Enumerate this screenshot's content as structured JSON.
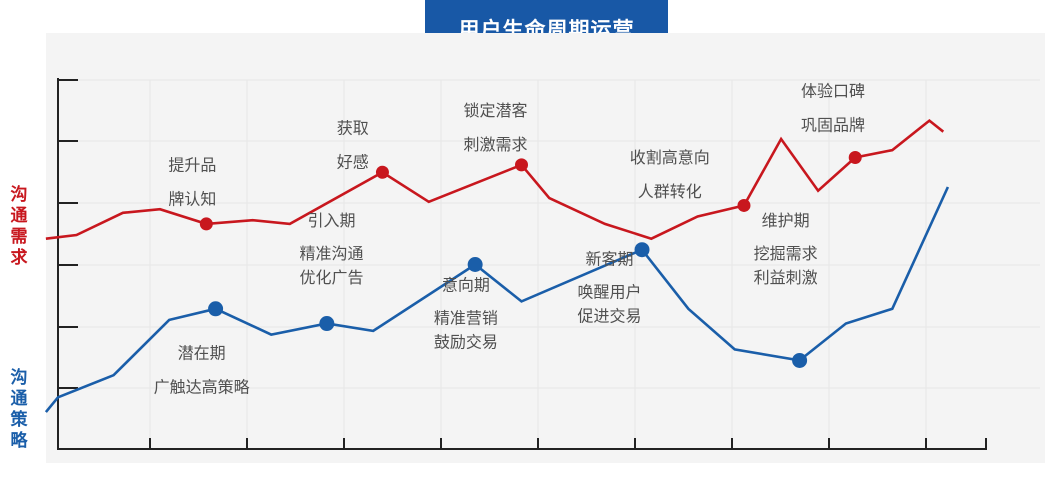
{
  "title": "用户生命周期运营",
  "left_labels": {
    "red": [
      "沟",
      "通",
      "需",
      "求"
    ],
    "blue": [
      "沟",
      "通",
      "策",
      "略"
    ]
  },
  "colors": {
    "red": "#c8171e",
    "blue": "#1a5ea9",
    "title_bg": "#1858a6",
    "axis": "#222222",
    "grid": "#e6e6e6"
  },
  "chart_data": {
    "type": "line",
    "xlim": [
      0,
      100
    ],
    "ylim": [
      0,
      100
    ],
    "grid": true,
    "series": [
      {
        "name": "沟通需求",
        "color": "#c8171e",
        "points": [
          [
            -1.3,
            57
          ],
          [
            2,
            58
          ],
          [
            7,
            64
          ],
          [
            11,
            65
          ],
          [
            16,
            61
          ],
          [
            21,
            62
          ],
          [
            25,
            61
          ],
          [
            35,
            75
          ],
          [
            40,
            67
          ],
          [
            50,
            77
          ],
          [
            53,
            68
          ],
          [
            59,
            61
          ],
          [
            64,
            57
          ],
          [
            69,
            63
          ],
          [
            74,
            66
          ],
          [
            78,
            84
          ],
          [
            82,
            70
          ],
          [
            86,
            79
          ],
          [
            90,
            81
          ],
          [
            94,
            89
          ],
          [
            95.5,
            86
          ]
        ],
        "markers": [
          [
            16,
            61
          ],
          [
            35,
            75
          ],
          [
            50,
            77
          ],
          [
            74,
            66
          ],
          [
            86,
            79
          ]
        ]
      },
      {
        "name": "沟通策略",
        "color": "#1a5ea9",
        "points": [
          [
            -1.3,
            10
          ],
          [
            0,
            14
          ],
          [
            6,
            20
          ],
          [
            12,
            35
          ],
          [
            17,
            38
          ],
          [
            23,
            31
          ],
          [
            29,
            34
          ],
          [
            34,
            32
          ],
          [
            45,
            50
          ],
          [
            50,
            40
          ],
          [
            63,
            54
          ],
          [
            68,
            38
          ],
          [
            73,
            27
          ],
          [
            80,
            24
          ],
          [
            85,
            34
          ],
          [
            90,
            38
          ],
          [
            96,
            71
          ]
        ],
        "markers": [
          [
            17,
            38
          ],
          [
            29,
            34
          ],
          [
            45,
            50
          ],
          [
            63,
            54
          ],
          [
            80,
            24
          ]
        ]
      }
    ],
    "annotations": [
      {
        "lines": [
          "提升品",
          "牌认知"
        ],
        "x": 14.5,
        "y": 75.5
      },
      {
        "lines": [
          "获取",
          "好感"
        ],
        "x": 31.8,
        "y": 85.5
      },
      {
        "lines": [
          "锁定潜客",
          "刺激需求"
        ],
        "x": 47.2,
        "y": 90.2
      },
      {
        "lines": [
          "收割高意向",
          "人群转化"
        ],
        "x": 66,
        "y": 77.5
      },
      {
        "lines": [
          "体验口碑",
          "巩固品牌"
        ],
        "x": 83.6,
        "y": 95.5
      },
      {
        "lines": [
          "引入期",
          "精准沟通",
          "优化广告"
        ],
        "x": 29.5,
        "y": 60.5
      },
      {
        "lines": [
          "潜在期",
          "广触达高策略"
        ],
        "x": 15.5,
        "y": 24.5
      },
      {
        "lines": [
          "意向期",
          "精准营销",
          "鼓励交易"
        ],
        "x": 44,
        "y": 43
      },
      {
        "lines": [
          "新客期",
          "唤醒用户",
          "促进交易"
        ],
        "x": 59.5,
        "y": 50
      },
      {
        "lines": [
          "维护期",
          "挖掘需求",
          "利益刺激"
        ],
        "x": 78.5,
        "y": 60.5
      }
    ]
  }
}
